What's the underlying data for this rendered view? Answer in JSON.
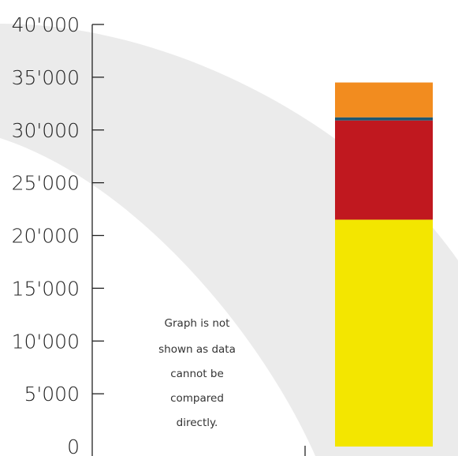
{
  "chart_data": {
    "type": "bar",
    "stacked": true,
    "categories": [
      ""
    ],
    "ylim": [
      0,
      40000
    ],
    "y_ticks": [
      0,
      5000,
      10000,
      15000,
      20000,
      25000,
      30000,
      35000,
      40000
    ],
    "y_tick_labels": [
      "0",
      "5'000",
      "10'000",
      "15'000",
      "20'000",
      "25'000",
      "30'000",
      "35'000",
      "40'000"
    ],
    "series": [
      {
        "values": [
          21500
        ],
        "color": "#f3e600"
      },
      {
        "values": [
          9400
        ],
        "color": "#c0181f"
      },
      {
        "values": [
          300
        ],
        "color": "#1f5670"
      },
      {
        "values": [
          3300
        ],
        "color": "#f28c1f"
      }
    ],
    "annotation": {
      "lines": [
        "Graph is not",
        "shown as data",
        "cannot be",
        "compared",
        "directly."
      ]
    },
    "grid": false,
    "legend": "none"
  }
}
